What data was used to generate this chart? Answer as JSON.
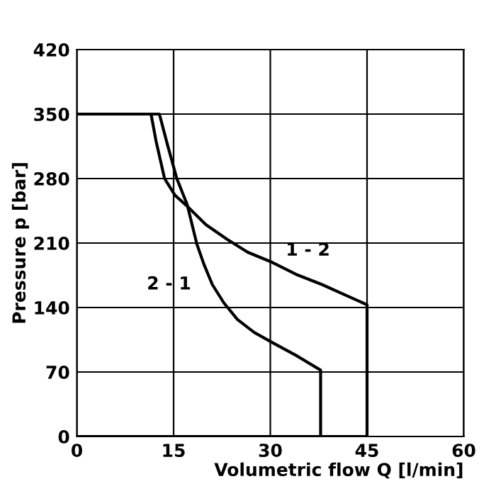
{
  "chart_data": {
    "type": "line",
    "xlabel": "Volumetric flow Q [l/min]",
    "ylabel": "Pressure p [bar]",
    "xlim": [
      0,
      60
    ],
    "xticks": [
      0,
      15,
      30,
      45,
      60
    ],
    "ylim": [
      0,
      420
    ],
    "yticks": [
      0,
      70,
      140,
      210,
      280,
      350,
      420
    ],
    "grid": true,
    "series": [
      {
        "name": "1 - 2",
        "color": "#000000",
        "x": [
          0,
          11.5,
          12.3,
          13.6,
          15.2,
          17.1,
          20,
          23.3,
          26.5,
          30.3,
          34,
          38,
          41.5,
          45,
          45,
          0
        ],
        "values": [
          350,
          350,
          320,
          280,
          262,
          250,
          230,
          214,
          200,
          189,
          176,
          165,
          154,
          143,
          0,
          0
        ]
      },
      {
        "name": "2 - 1",
        "color": "#000000",
        "x": [
          0,
          12.8,
          14,
          15.5,
          17.1,
          18.6,
          19.7,
          21,
          22.8,
          24.9,
          27.5,
          30.3,
          34,
          37.8,
          37.8,
          0
        ],
        "values": [
          350,
          350,
          318,
          280,
          252,
          209,
          187,
          165,
          145,
          127,
          113,
          102,
          88,
          72,
          0,
          0
        ]
      }
    ]
  }
}
